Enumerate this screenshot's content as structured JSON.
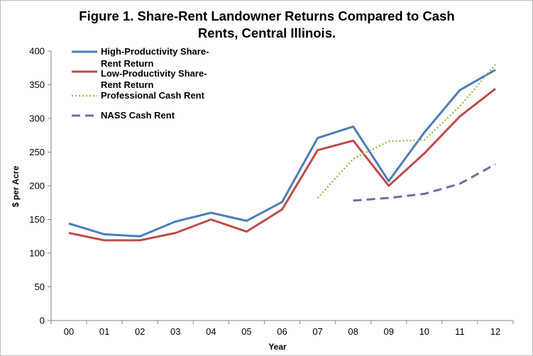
{
  "chart_data": {
    "type": "line",
    "title_lines": [
      "Figure 1.  Share-Rent Landowner Returns Compared to Cash",
      "Rents, Central Illinois."
    ],
    "xlabel": "Year",
    "ylabel": "$ per Acre",
    "ylim": [
      0,
      400
    ],
    "yticks": [
      0,
      50,
      100,
      150,
      200,
      250,
      300,
      350,
      400
    ],
    "categories": [
      "00",
      "01",
      "02",
      "03",
      "04",
      "05",
      "06",
      "07",
      "08",
      "09",
      "10",
      "11",
      "12"
    ],
    "legend": "top-left",
    "grid": false,
    "series": [
      {
        "name": "High-Productivity Share-Rent Return",
        "legend_lines": [
          "High-Productivity Share-",
          "Rent Return"
        ],
        "color": "#4a7ebb",
        "style": "solid",
        "values": [
          144,
          128,
          125,
          147,
          160,
          148,
          176,
          271,
          288,
          207,
          279,
          342,
          372
        ]
      },
      {
        "name": "Low-Productivity Share-Rent Return",
        "legend_lines": [
          "Low-Productivity Share-",
          "Rent Return"
        ],
        "color": "#be4b48",
        "style": "solid",
        "values": [
          130,
          119,
          119,
          130,
          150,
          132,
          165,
          253,
          267,
          200,
          248,
          303,
          344
        ]
      },
      {
        "name": "Professional Cash Rent",
        "legend_lines": [
          "Professional Cash Rent"
        ],
        "color": "#9bbb59",
        "style": "dotted",
        "values": [
          null,
          null,
          null,
          null,
          null,
          null,
          null,
          182,
          240,
          266,
          268,
          318,
          380
        ]
      },
      {
        "name": "NASS Cash Rent",
        "legend_lines": [
          "NASS Cash Rent"
        ],
        "color": "#8064a2",
        "style": "dashed",
        "values": [
          null,
          null,
          null,
          null,
          null,
          null,
          null,
          null,
          178,
          182,
          188,
          203,
          232
        ]
      }
    ]
  }
}
